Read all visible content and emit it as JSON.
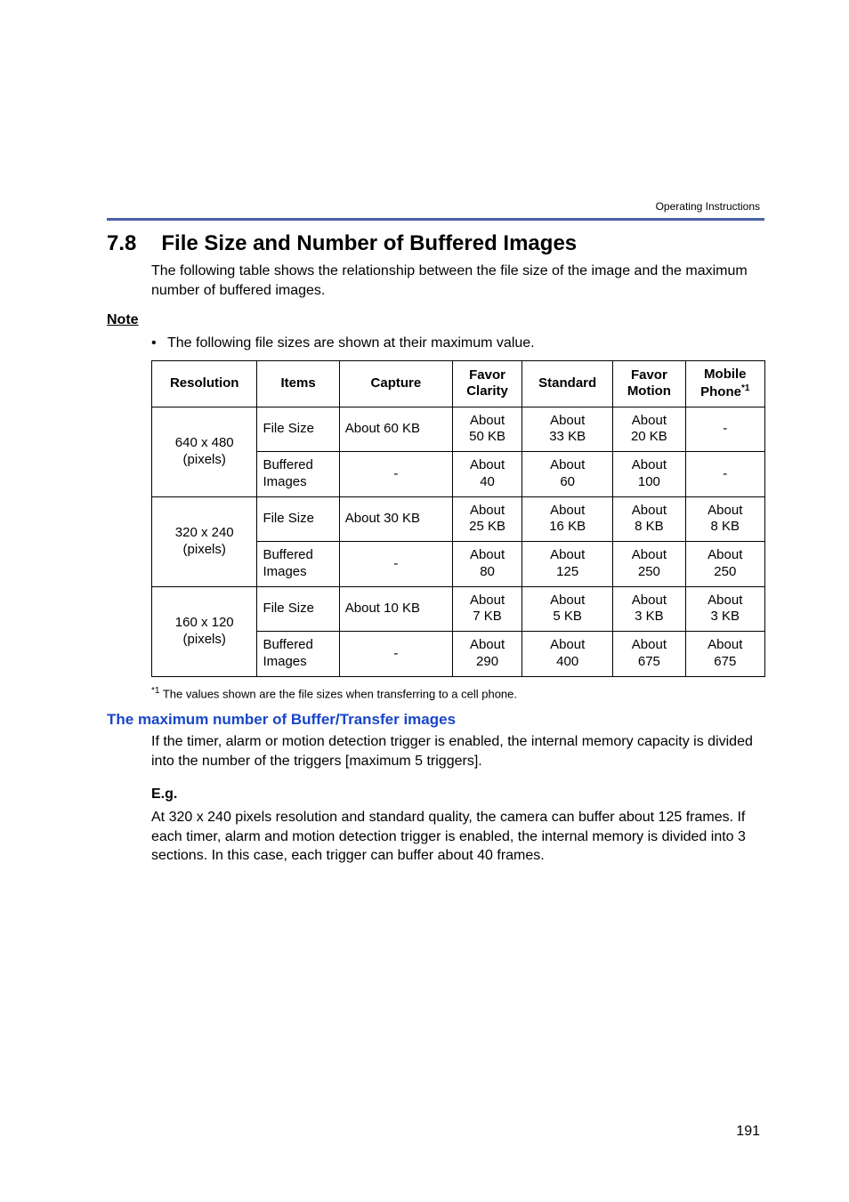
{
  "running_header": "Operating Instructions",
  "section": {
    "number": "7.8",
    "title": "File Size and Number of Buffered Images",
    "intro": "The following table shows the relationship between the file size of the image and the maximum number of buffered images."
  },
  "note": {
    "label": "Note",
    "bullet": "The following file sizes are shown at their maximum value."
  },
  "table": {
    "headers": {
      "resolution": "Resolution",
      "items": "Items",
      "capture": "Capture",
      "favor_clarity_l1": "Favor",
      "favor_clarity_l2": "Clarity",
      "standard": "Standard",
      "favor_motion_l1": "Favor",
      "favor_motion_l2": "Motion",
      "mobile_l1": "Mobile",
      "mobile_l2": "Phone",
      "mobile_sup": "*1"
    },
    "rows": [
      {
        "resolution_l1": "640 x 480",
        "resolution_l2": "(pixels)",
        "items": "File Size",
        "capture": "About 60 KB",
        "favor_clarity_l1": "About",
        "favor_clarity_l2": "50 KB",
        "standard_l1": "About",
        "standard_l2": "33 KB",
        "favor_motion_l1": "About",
        "favor_motion_l2": "20 KB",
        "mobile": "-"
      },
      {
        "items_l1": "Buffered",
        "items_l2": "Images",
        "capture": "-",
        "favor_clarity_l1": "About",
        "favor_clarity_l2": "40",
        "standard_l1": "About",
        "standard_l2": "60",
        "favor_motion_l1": "About",
        "favor_motion_l2": "100",
        "mobile": "-"
      },
      {
        "resolution_l1": "320 x 240",
        "resolution_l2": "(pixels)",
        "items": "File Size",
        "capture": "About 30 KB",
        "favor_clarity_l1": "About",
        "favor_clarity_l2": "25 KB",
        "standard_l1": "About",
        "standard_l2": "16 KB",
        "favor_motion_l1": "About",
        "favor_motion_l2": "8 KB",
        "mobile_l1": "About",
        "mobile_l2": "8 KB"
      },
      {
        "items_l1": "Buffered",
        "items_l2": "Images",
        "capture": "-",
        "favor_clarity_l1": "About",
        "favor_clarity_l2": "80",
        "standard_l1": "About",
        "standard_l2": "125",
        "favor_motion_l1": "About",
        "favor_motion_l2": "250",
        "mobile_l1": "About",
        "mobile_l2": "250"
      },
      {
        "resolution_l1": "160 x 120",
        "resolution_l2": "(pixels)",
        "items": "File Size",
        "capture": "About 10 KB",
        "favor_clarity_l1": "About",
        "favor_clarity_l2": "7 KB",
        "standard_l1": "About",
        "standard_l2": "5 KB",
        "favor_motion_l1": "About",
        "favor_motion_l2": "3 KB",
        "mobile_l1": "About",
        "mobile_l2": "3 KB"
      },
      {
        "items_l1": "Buffered",
        "items_l2": "Images",
        "capture": "-",
        "favor_clarity_l1": "About",
        "favor_clarity_l2": "290",
        "standard_l1": "About",
        "standard_l2": "400",
        "favor_motion_l1": "About",
        "favor_motion_l2": "675",
        "mobile_l1": "About",
        "mobile_l2": "675"
      }
    ]
  },
  "footnote": {
    "mark": "*1",
    "text": " The values shown are the file sizes when transferring to a cell phone."
  },
  "subsection": {
    "heading": "The maximum number of Buffer/Transfer images",
    "body": "If the timer, alarm or motion detection trigger is enabled, the internal memory capacity is divided into the number of the triggers [maximum 5 triggers].",
    "eg_label": "E.g.",
    "eg_body": "At 320 x 240 pixels resolution and standard quality, the camera can buffer about 125 frames. If each timer, alarm and motion detection trigger is enabled, the internal memory is divided into 3 sections. In this case, each trigger can buffer about 40 frames."
  },
  "page_number": "191",
  "colors": {
    "rule": "#4a5fa8",
    "subhead": "#1846c8"
  }
}
